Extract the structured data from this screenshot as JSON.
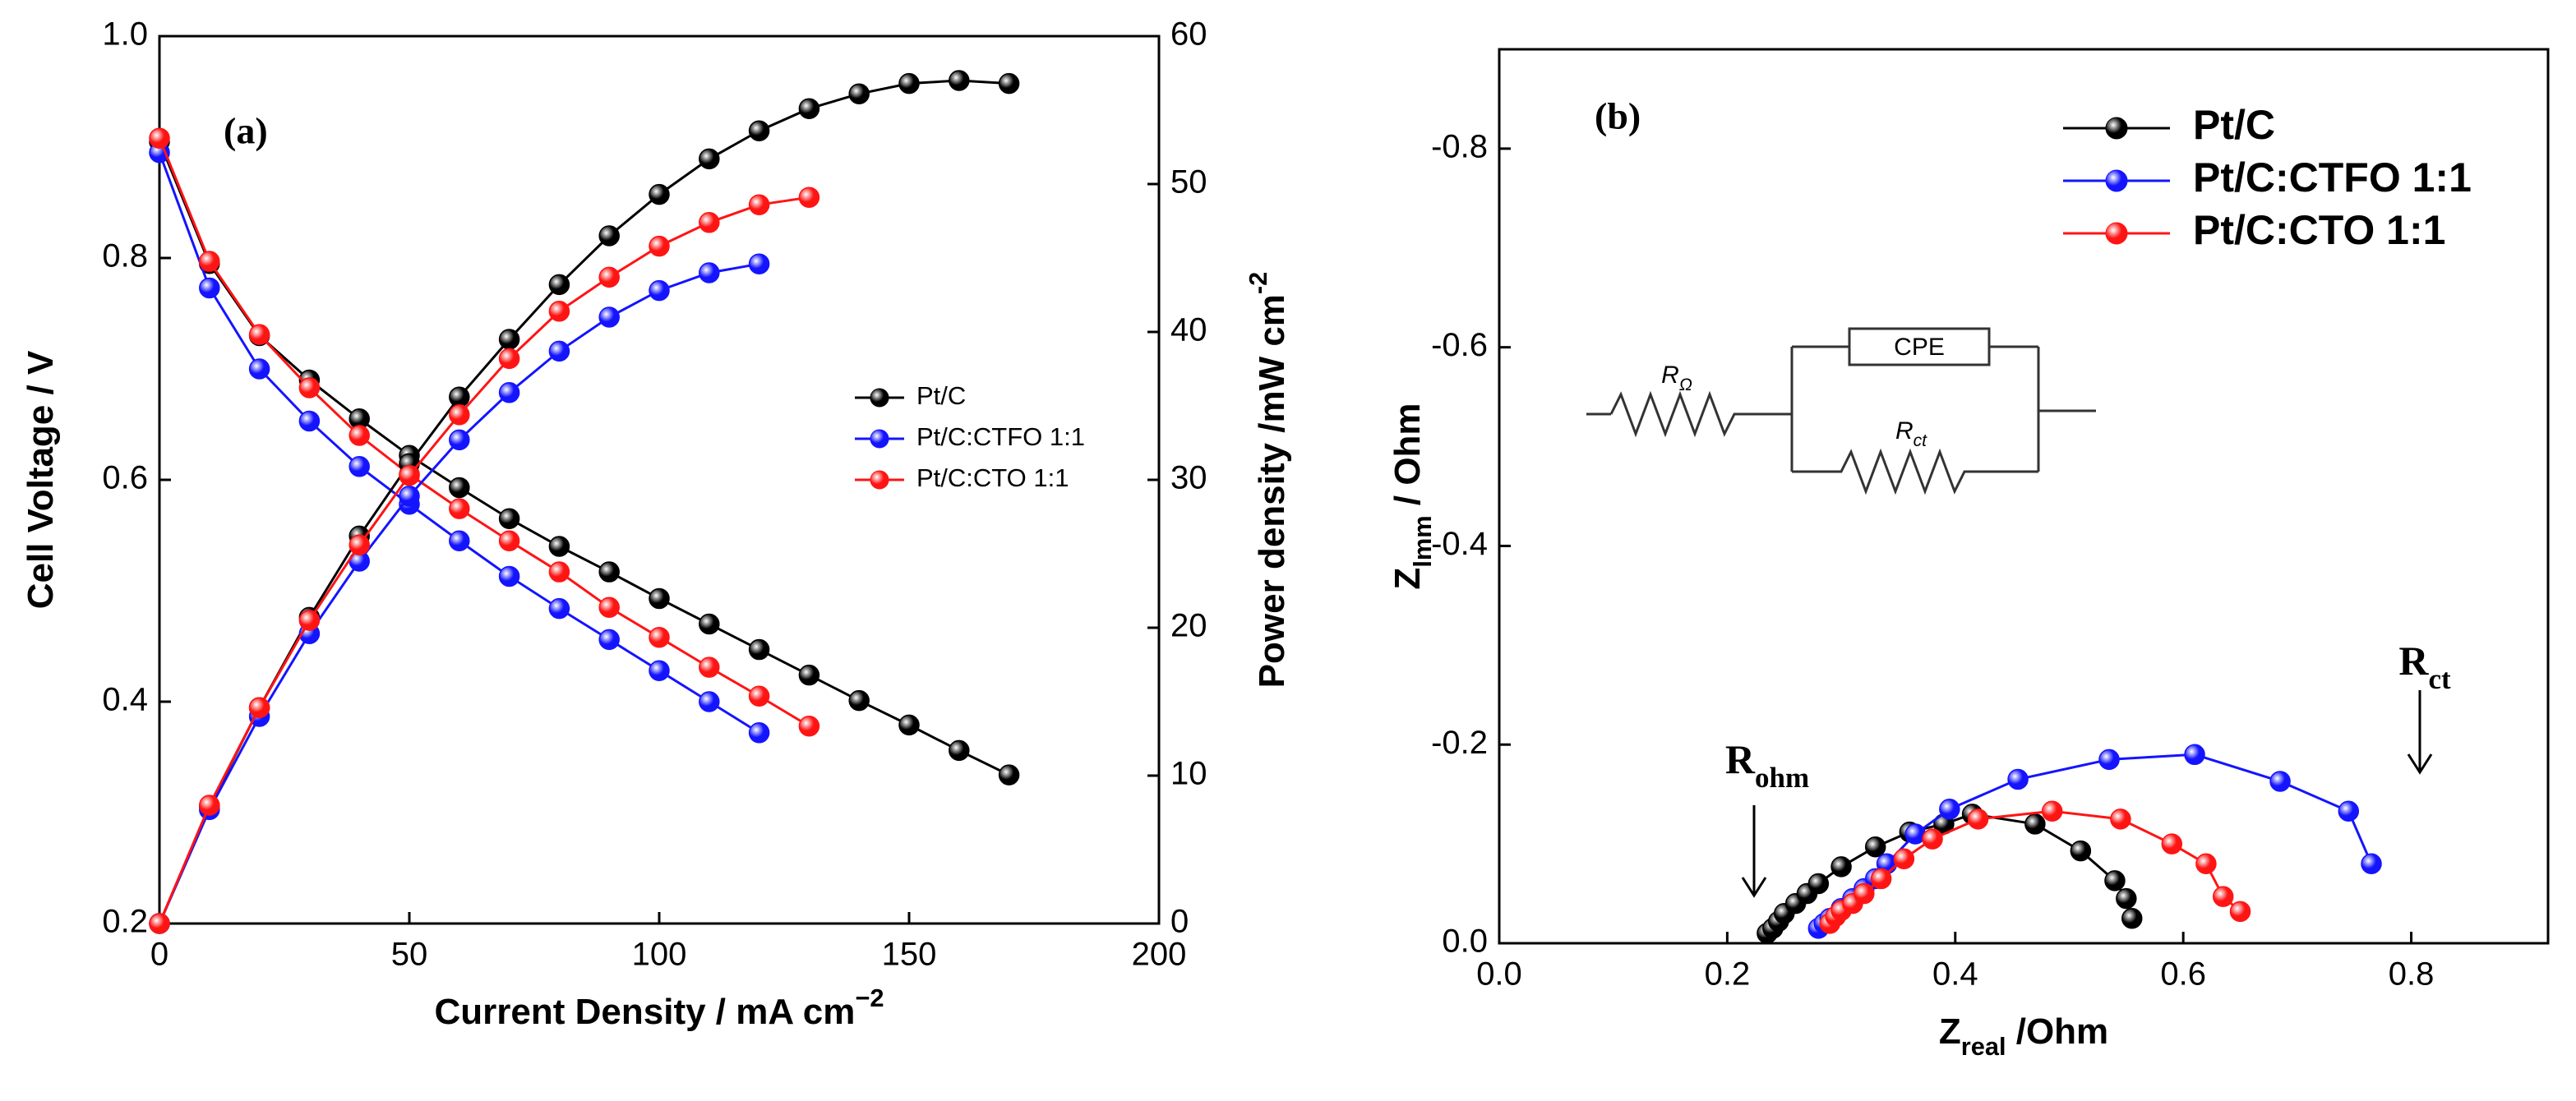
{
  "chart_data": [
    {
      "type": "line",
      "title": "(a)",
      "xlabel": {
        "text": "Current Density / mA cm",
        "sup": "−2"
      },
      "ylabel": {
        "text": "Cell Voltage / V"
      },
      "y2label": {
        "text": "Power density /mW cm",
        "sup": "-2"
      },
      "x": [
        0,
        10,
        20,
        30,
        40,
        50,
        60,
        70,
        80,
        90,
        100,
        110,
        120,
        130,
        140,
        150,
        160,
        170
      ],
      "xlim": [
        0,
        200
      ],
      "xticks": [
        0,
        50,
        100,
        150,
        200
      ],
      "ylim": [
        0.2,
        1.0
      ],
      "yticks": [
        0.2,
        0.4,
        0.6,
        0.8,
        {
          "value": 1.0,
          "label": "1.0"
        }
      ],
      "y2lim": [
        0,
        60
      ],
      "y2ticks": [
        0,
        10,
        20,
        30,
        40,
        50,
        60
      ],
      "legend": "right",
      "series": [
        {
          "name": "Pt/C",
          "color": "#000000",
          "values": [
            0.905,
            0.795,
            0.73,
            0.69,
            0.655,
            0.622,
            0.593,
            0.565,
            0.54,
            0.517,
            0.493,
            0.47,
            0.447,
            0.424,
            0.401,
            0.379,
            0.356,
            0.334
          ]
        },
        {
          "name": "Pt/C:CTFO 1:1",
          "color": "#1414ff",
          "values": [
            0.895,
            0.773,
            0.7,
            0.653,
            0.612,
            0.578,
            0.545,
            0.513,
            0.484,
            0.456,
            0.428,
            0.4,
            0.372,
            null,
            null,
            null,
            null,
            null
          ]
        },
        {
          "name": "Pt/C:CTO 1:1",
          "color": "#ff1414",
          "values": [
            0.908,
            0.797,
            0.731,
            0.683,
            0.64,
            0.605,
            0.574,
            0.545,
            0.517,
            0.485,
            0.458,
            0.431,
            0.405,
            0.378,
            null,
            null,
            null,
            null
          ]
        },
        {
          "color": "#000000",
          "axis": "y2",
          "values": [
            0,
            7.9,
            14.6,
            20.7,
            26.2,
            31.1,
            35.6,
            39.5,
            43.2,
            46.5,
            49.3,
            51.7,
            53.6,
            55.1,
            56.1,
            56.8,
            57.0,
            56.8
          ]
        },
        {
          "color": "#1414ff",
          "axis": "y2",
          "values": [
            0,
            7.7,
            14.0,
            19.6,
            24.5,
            28.9,
            32.7,
            35.9,
            38.7,
            41.0,
            42.8,
            44.0,
            44.6,
            null,
            null,
            null,
            null,
            null
          ]
        },
        {
          "color": "#ff1414",
          "axis": "y2",
          "values": [
            0,
            8.0,
            14.6,
            20.5,
            25.6,
            30.3,
            34.4,
            38.2,
            41.4,
            43.7,
            45.8,
            47.4,
            48.6,
            49.1,
            null,
            null,
            null,
            null
          ]
        }
      ]
    },
    {
      "type": "scatter",
      "title": "(b)",
      "xlabel": {
        "text": "Z",
        "sub": "real",
        "rest": " /Ohm"
      },
      "ylabel": {
        "text": "Z",
        "sub": "lmm",
        "rest": " / Ohm"
      },
      "xlim": [
        0,
        0.92
      ],
      "xticks": [
        {
          "value": 0,
          "label": "0.0"
        },
        0.2,
        0.4,
        0.6,
        0.8
      ],
      "ylim": [
        0,
        -0.9
      ],
      "yticks": [
        {
          "value": 0,
          "label": "0.0"
        },
        -0.2,
        -0.4,
        -0.6,
        -0.8
      ],
      "legend": "upper right",
      "annotations": [
        {
          "text": "R",
          "sub": "ohm"
        },
        {
          "text": "R",
          "sub": "ct"
        }
      ],
      "circuit_labels": [
        {
          "text": "R",
          "sub": "Ω"
        },
        {
          "text": "CPE"
        },
        {
          "text": "R",
          "sub": "ct"
        }
      ],
      "series": [
        {
          "name": "Pt/C",
          "color": "#000000",
          "x": [
            0.235,
            0.24,
            0.245,
            0.25,
            0.26,
            0.27,
            0.28,
            0.3,
            0.33,
            0.36,
            0.39,
            0.415,
            0.47,
            0.51,
            0.54,
            0.55,
            0.555
          ],
          "values": [
            -0.01,
            -0.015,
            -0.022,
            -0.03,
            -0.04,
            -0.05,
            -0.06,
            -0.077,
            -0.097,
            -0.112,
            -0.12,
            -0.13,
            -0.12,
            -0.093,
            -0.063,
            -0.045,
            -0.025
          ]
        },
        {
          "name": "Pt/C:CTFO 1:1",
          "color": "#1414ff",
          "x": [
            0.28,
            0.285,
            0.29,
            0.3,
            0.31,
            0.32,
            0.33,
            0.34,
            0.365,
            0.395,
            0.455,
            0.535,
            0.61,
            0.685,
            0.745,
            0.765
          ],
          "values": [
            -0.015,
            -0.02,
            -0.025,
            -0.035,
            -0.045,
            -0.055,
            -0.065,
            -0.08,
            -0.11,
            -0.135,
            -0.165,
            -0.185,
            -0.19,
            -0.163,
            -0.133,
            -0.08
          ]
        },
        {
          "name": "Pt/C:CTO 1:1",
          "color": "#ff1414",
          "x": [
            0.29,
            0.295,
            0.3,
            0.31,
            0.32,
            0.335,
            0.355,
            0.38,
            0.42,
            0.485,
            0.545,
            0.59,
            0.62,
            0.635,
            0.65
          ],
          "values": [
            -0.02,
            -0.027,
            -0.033,
            -0.04,
            -0.05,
            -0.065,
            -0.085,
            -0.105,
            -0.125,
            -0.133,
            -0.125,
            -0.1,
            -0.08,
            -0.047,
            -0.032
          ]
        }
      ]
    }
  ]
}
